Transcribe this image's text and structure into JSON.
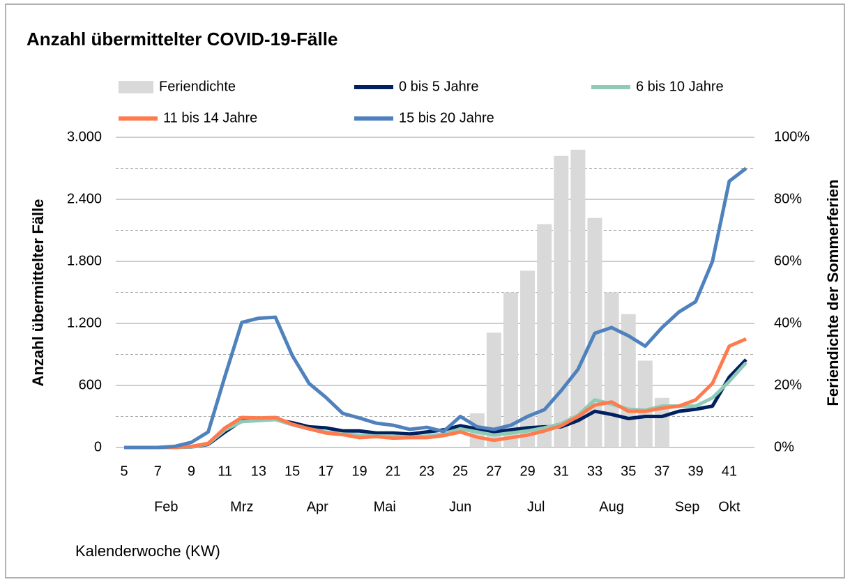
{
  "chart_data": {
    "type": "line",
    "title": "Anzahl übermittelter COVID-19-Fälle",
    "y_label": "Anzahl übermittelter Fälle",
    "y2_label": "Feriendichte der Sommerferien",
    "x_label": "Kalenderwoche (KW)",
    "x": [
      5,
      6,
      7,
      8,
      9,
      10,
      11,
      12,
      13,
      14,
      15,
      16,
      17,
      18,
      19,
      20,
      21,
      22,
      23,
      24,
      25,
      26,
      27,
      28,
      29,
      30,
      31,
      32,
      33,
      34,
      35,
      36,
      37,
      38,
      39,
      40,
      41,
      42
    ],
    "xlim": [
      4.5,
      42.5
    ],
    "xticks": [
      5,
      7,
      9,
      11,
      13,
      15,
      17,
      19,
      21,
      23,
      25,
      27,
      29,
      31,
      33,
      35,
      37,
      39,
      41
    ],
    "month_labels": [
      {
        "label": "Feb",
        "x": 7.5
      },
      {
        "label": "Mrz",
        "x": 12
      },
      {
        "label": "Apr",
        "x": 16.5
      },
      {
        "label": "Mai",
        "x": 20.5
      },
      {
        "label": "Jun",
        "x": 25
      },
      {
        "label": "Jul",
        "x": 29.5
      },
      {
        "label": "Aug",
        "x": 34
      },
      {
        "label": "Sep",
        "x": 38.5
      },
      {
        "label": "Okt",
        "x": 41
      }
    ],
    "ylim": [
      0,
      3000
    ],
    "yticks": [
      0,
      600,
      {
        "value": 1200,
        "label": "1.200"
      },
      {
        "value": 1800,
        "label": "1.800"
      },
      {
        "value": 2400,
        "label": "2.400"
      },
      {
        "value": 3000,
        "label": "3.000"
      }
    ],
    "y2lim": [
      0,
      100
    ],
    "y2ticks": [
      {
        "value": 0,
        "label": "0%"
      },
      {
        "value": 20,
        "label": "20%"
      },
      {
        "value": 40,
        "label": "40%"
      },
      {
        "value": 60,
        "label": "60%"
      },
      {
        "value": 80,
        "label": "80%"
      },
      {
        "value": 100,
        "label": "100%"
      }
    ],
    "y2_minor_grid": [
      10,
      30,
      50,
      70,
      90
    ],
    "grid": true,
    "series": [
      {
        "name": "Feriendichte",
        "type": "bar",
        "axis": "y2",
        "color": "#d9d9d9",
        "values": [
          0,
          0,
          0,
          0,
          0,
          0,
          0,
          0,
          0,
          0,
          0,
          0,
          0,
          0,
          0,
          0,
          0,
          0,
          0,
          0,
          0,
          11,
          37,
          50,
          57,
          72,
          94,
          96,
          74,
          50,
          43,
          28,
          16,
          0,
          0,
          0,
          0,
          0
        ]
      },
      {
        "name": "0 bis 5 Jahre",
        "color": "#002060",
        "values": [
          0,
          0,
          0,
          2,
          5,
          30,
          150,
          260,
          280,
          270,
          240,
          200,
          190,
          160,
          160,
          140,
          140,
          130,
          150,
          170,
          210,
          180,
          150,
          170,
          190,
          200,
          200,
          260,
          350,
          320,
          280,
          300,
          300,
          350,
          370,
          400,
          680,
          850
        ]
      },
      {
        "name": "6 bis 10 Jahre",
        "color": "#8fcab5",
        "values": [
          0,
          0,
          0,
          2,
          5,
          35,
          170,
          250,
          260,
          270,
          220,
          180,
          150,
          130,
          120,
          110,
          110,
          100,
          110,
          130,
          180,
          150,
          120,
          140,
          160,
          190,
          230,
          310,
          460,
          420,
          370,
          360,
          400,
          400,
          400,
          480,
          640,
          820
        ]
      },
      {
        "name": "11 bis 14 Jahre",
        "color": "#ff7b4d",
        "values": [
          0,
          0,
          0,
          2,
          10,
          40,
          190,
          290,
          285,
          290,
          225,
          180,
          140,
          125,
          95,
          105,
          90,
          95,
          95,
          115,
          150,
          100,
          70,
          95,
          120,
          160,
          210,
          300,
          410,
          440,
          350,
          350,
          380,
          400,
          460,
          620,
          980,
          1050
        ]
      },
      {
        "name": "15 bis 20 Jahre",
        "color": "#4f81bd",
        "values": [
          0,
          0,
          0,
          10,
          50,
          150,
          690,
          1210,
          1250,
          1260,
          890,
          620,
          485,
          330,
          285,
          235,
          215,
          175,
          195,
          155,
          300,
          200,
          175,
          215,
          300,
          365,
          550,
          755,
          1105,
          1160,
          1080,
          980,
          1160,
          1310,
          1410,
          1800,
          2575,
          2700
        ]
      }
    ]
  }
}
